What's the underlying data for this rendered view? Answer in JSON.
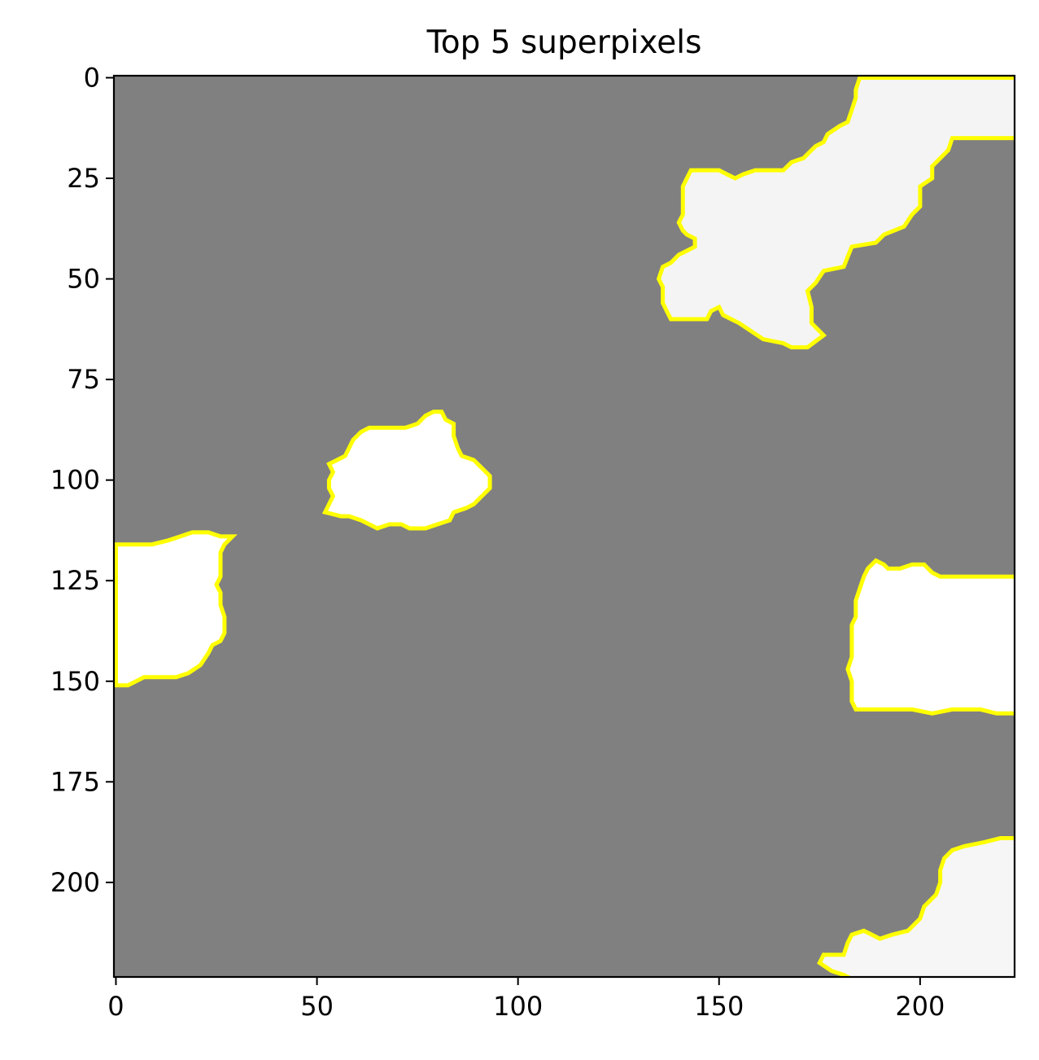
{
  "chart_data": {
    "type": "image",
    "title": "Top 5 superpixels",
    "xlabel": "",
    "ylabel": "",
    "xlim": [
      -0.5,
      223.5
    ],
    "ylim": [
      223.5,
      -0.5
    ],
    "xticks": [
      0,
      50,
      100,
      150,
      200
    ],
    "yticks": [
      0,
      25,
      50,
      75,
      100,
      125,
      150,
      175,
      200
    ],
    "grid": false,
    "colors": {
      "masked": "#808080",
      "region": "#ffffff",
      "boundary": "#ffff00",
      "axis": "#000000"
    },
    "regions": [
      {
        "fill": "#f4f4f4",
        "outline": [
          [
            185,
            0
          ],
          [
            224,
            0
          ],
          [
            224,
            15
          ],
          [
            208,
            15
          ],
          [
            207,
            18
          ],
          [
            205,
            20
          ],
          [
            203,
            22
          ],
          [
            203,
            25
          ],
          [
            200,
            27
          ],
          [
            200,
            32
          ],
          [
            198,
            34
          ],
          [
            196,
            37
          ],
          [
            191,
            39
          ],
          [
            189,
            41
          ],
          [
            183,
            42
          ],
          [
            181,
            47
          ],
          [
            176,
            48
          ],
          [
            174,
            51
          ],
          [
            172,
            53
          ],
          [
            173,
            57
          ],
          [
            173,
            61
          ],
          [
            176,
            64
          ],
          [
            172,
            67
          ],
          [
            168,
            67
          ],
          [
            166,
            66
          ],
          [
            161,
            65
          ],
          [
            158,
            63
          ],
          [
            155,
            61
          ],
          [
            151,
            59
          ],
          [
            150,
            57
          ],
          [
            148,
            58
          ],
          [
            147,
            60
          ],
          [
            143,
            60
          ],
          [
            138,
            60
          ],
          [
            137,
            58
          ],
          [
            136,
            56
          ],
          [
            136,
            52
          ],
          [
            135,
            50
          ],
          [
            136,
            47
          ],
          [
            138,
            46
          ],
          [
            140,
            44
          ],
          [
            142,
            43
          ],
          [
            144,
            42
          ],
          [
            144,
            40
          ],
          [
            142,
            39
          ],
          [
            141,
            38
          ],
          [
            140,
            36
          ],
          [
            141,
            34
          ],
          [
            141,
            31
          ],
          [
            141,
            27
          ],
          [
            142,
            25
          ],
          [
            143,
            23
          ],
          [
            147,
            23
          ],
          [
            150,
            23
          ],
          [
            152,
            24
          ],
          [
            154,
            25
          ],
          [
            156,
            24
          ],
          [
            159,
            23
          ],
          [
            162,
            23
          ],
          [
            164,
            23
          ],
          [
            166,
            23
          ],
          [
            168,
            21
          ],
          [
            171,
            20
          ],
          [
            173,
            18
          ],
          [
            174,
            17
          ],
          [
            176,
            16
          ],
          [
            177,
            14
          ],
          [
            180,
            12
          ],
          [
            182,
            11
          ],
          [
            183,
            8
          ],
          [
            184,
            5
          ],
          [
            184,
            3
          ]
        ]
      },
      {
        "fill": "#ffffff",
        "outline": [
          [
            52,
            108
          ],
          [
            53,
            106
          ],
          [
            54,
            104
          ],
          [
            53,
            102
          ],
          [
            53,
            100
          ],
          [
            54,
            98
          ],
          [
            53,
            96
          ],
          [
            55,
            95
          ],
          [
            57,
            94
          ],
          [
            58,
            92
          ],
          [
            59,
            90
          ],
          [
            61,
            88
          ],
          [
            63,
            87
          ],
          [
            68,
            87
          ],
          [
            72,
            87
          ],
          [
            75,
            86
          ],
          [
            77,
            84
          ],
          [
            79,
            83
          ],
          [
            81,
            83
          ],
          [
            82,
            85
          ],
          [
            84,
            86
          ],
          [
            84,
            89
          ],
          [
            85,
            92
          ],
          [
            86,
            94
          ],
          [
            89,
            95
          ],
          [
            91,
            97
          ],
          [
            93,
            99
          ],
          [
            93,
            102
          ],
          [
            91,
            104
          ],
          [
            89,
            106
          ],
          [
            87,
            107
          ],
          [
            84,
            108
          ],
          [
            83,
            110
          ],
          [
            80,
            111
          ],
          [
            77,
            112
          ],
          [
            73,
            112
          ],
          [
            71,
            111
          ],
          [
            68,
            111
          ],
          [
            65,
            112
          ],
          [
            63,
            111
          ],
          [
            61,
            110
          ],
          [
            58,
            109
          ],
          [
            56,
            109
          ]
        ]
      },
      {
        "fill": "#ffffff",
        "outline": [
          [
            0,
            116
          ],
          [
            5,
            116
          ],
          [
            9,
            116
          ],
          [
            13,
            115
          ],
          [
            16,
            114
          ],
          [
            19,
            113
          ],
          [
            23,
            113
          ],
          [
            26,
            114
          ],
          [
            29,
            114
          ],
          [
            27,
            116
          ],
          [
            26,
            118
          ],
          [
            26,
            121
          ],
          [
            26,
            124
          ],
          [
            25,
            126
          ],
          [
            26,
            128
          ],
          [
            26,
            131
          ],
          [
            27,
            134
          ],
          [
            27,
            138
          ],
          [
            26,
            140
          ],
          [
            24,
            141
          ],
          [
            23,
            143
          ],
          [
            21,
            146
          ],
          [
            18,
            148
          ],
          [
            15,
            149
          ],
          [
            10,
            149
          ],
          [
            7,
            149
          ],
          [
            5,
            150
          ],
          [
            3,
            151
          ],
          [
            0,
            151
          ]
        ]
      },
      {
        "fill": "#ffffff",
        "outline": [
          [
            224,
            124
          ],
          [
            209,
            124
          ],
          [
            205,
            124
          ],
          [
            203,
            123
          ],
          [
            201,
            121
          ],
          [
            198,
            121
          ],
          [
            195,
            122
          ],
          [
            192,
            122
          ],
          [
            191,
            121
          ],
          [
            189,
            120
          ],
          [
            188,
            121
          ],
          [
            187,
            122
          ],
          [
            186,
            124
          ],
          [
            185,
            127
          ],
          [
            184,
            130
          ],
          [
            184,
            134
          ],
          [
            183,
            136
          ],
          [
            183,
            140
          ],
          [
            183,
            144
          ],
          [
            182,
            147
          ],
          [
            183,
            150
          ],
          [
            183,
            153
          ],
          [
            183,
            155
          ],
          [
            184,
            157
          ],
          [
            188,
            157
          ],
          [
            193,
            157
          ],
          [
            198,
            157
          ],
          [
            203,
            158
          ],
          [
            208,
            157
          ],
          [
            215,
            157
          ],
          [
            219,
            158
          ],
          [
            224,
            158
          ]
        ]
      },
      {
        "fill": "#f6f6f6",
        "outline": [
          [
            224,
            189
          ],
          [
            220,
            189
          ],
          [
            216,
            190
          ],
          [
            211,
            191
          ],
          [
            208,
            192
          ],
          [
            206,
            194
          ],
          [
            205,
            197
          ],
          [
            205,
            200
          ],
          [
            204,
            203
          ],
          [
            201,
            206
          ],
          [
            200,
            209
          ],
          [
            197,
            212
          ],
          [
            193,
            213
          ],
          [
            190,
            214
          ],
          [
            188,
            213
          ],
          [
            186,
            212
          ],
          [
            183,
            213
          ],
          [
            182,
            215
          ],
          [
            181,
            218
          ],
          [
            179,
            218
          ],
          [
            176,
            218
          ],
          [
            175,
            220
          ],
          [
            178,
            222
          ],
          [
            181,
            223
          ],
          [
            183,
            224
          ],
          [
            224,
            224
          ]
        ]
      }
    ]
  }
}
